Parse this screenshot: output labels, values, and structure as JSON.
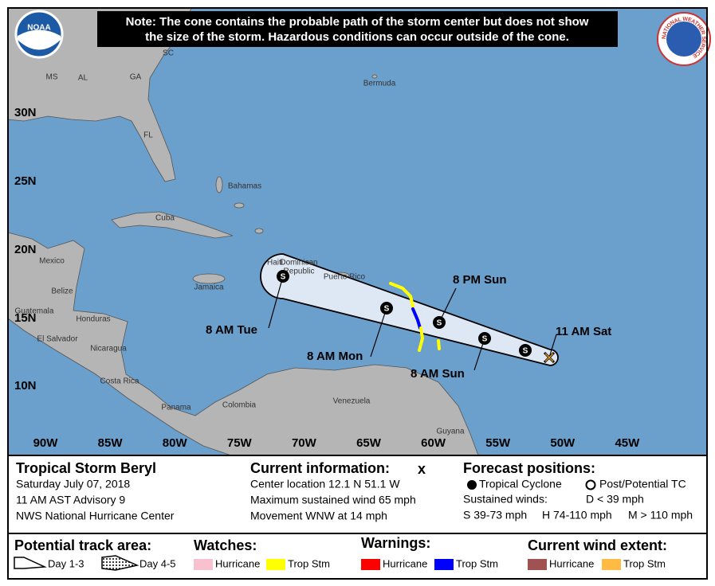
{
  "logos": {
    "noaa": "NOAA",
    "nws": "NATIONAL WEATHER SERVICE"
  },
  "note": [
    "Note: The cone contains the probable path of the storm center but does not show",
    "the size of the storm. Hazardous conditions can occur outside of the cone."
  ],
  "map": {
    "latitude_labels": [
      "30N",
      "25N",
      "20N",
      "15N",
      "10N"
    ],
    "longitude_labels": [
      "90W",
      "85W",
      "80W",
      "75W",
      "70W",
      "65W",
      "60W",
      "55W",
      "50W",
      "45W"
    ],
    "places": [
      "SC",
      "MS",
      "AL",
      "GA",
      "FL",
      "Bermuda",
      "Bahamas",
      "Cuba",
      "Mexico",
      "Haiti",
      "Dominican",
      "Republic",
      "Puerto Rico",
      "Jamaica",
      "Belize",
      "Guatemala",
      "Honduras",
      "El Salvador",
      "Nicaragua",
      "Costa Rica",
      "Panama",
      "Colombia",
      "Venezuela",
      "Guyana"
    ],
    "forecast_marker": "S",
    "track_labels": [
      "11 AM Sat",
      "8 AM Sun",
      "8 PM Sun",
      "8 AM Mon",
      "8 AM Tue"
    ]
  },
  "info": {
    "storm": {
      "title": "Tropical Storm Beryl",
      "date": "Saturday July 07, 2018",
      "advisory": "11 AM AST Advisory 9",
      "center": "NWS National Hurricane Center"
    },
    "current": {
      "heading": "Current information:",
      "symbol": "x",
      "lines": [
        "Center location 12.1 N 51.1 W",
        "Maximum sustained wind 65 mph",
        "Movement WNW at 14 mph"
      ]
    },
    "forecast": {
      "heading": "Forecast positions:",
      "tropical_cyclone": "Tropical Cyclone",
      "post_tc": "Post/Potential TC",
      "winds_label": "Sustained winds:",
      "d": "D < 39 mph",
      "s": "S 39-73 mph",
      "h": "H 74-110 mph",
      "m": "M > 110 mph"
    }
  },
  "legend": {
    "track_heading": "Potential track area:",
    "day13": "Day 1-3",
    "day45": "Day 4-5",
    "watches": {
      "heading": "Watches:",
      "hurricane": "Hurricane",
      "trop_stm": "Trop Stm"
    },
    "warnings": {
      "heading": "Warnings:",
      "hurricane": "Hurricane",
      "trop_stm": "Trop Stm"
    },
    "wind": {
      "heading": "Current wind extent:",
      "hurricane": "Hurricane",
      "trop_stm": "Trop Stm"
    }
  }
}
